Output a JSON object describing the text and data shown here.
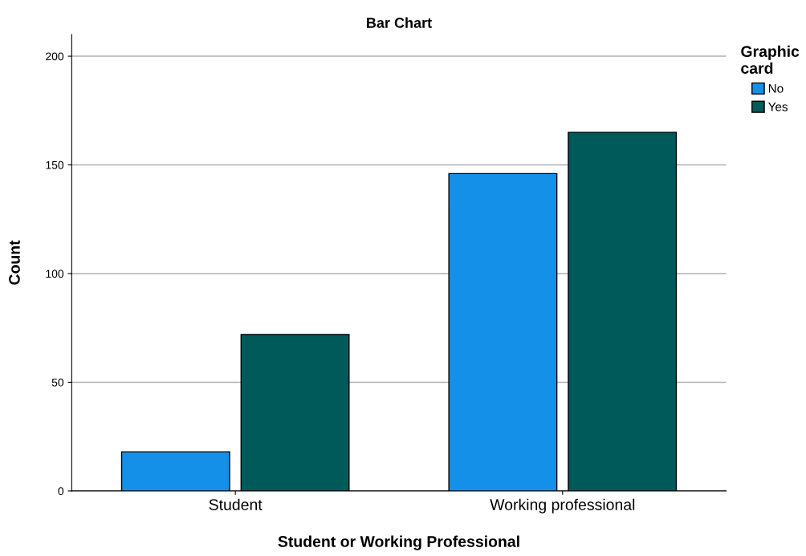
{
  "chart_data": {
    "type": "bar",
    "title": "Bar Chart",
    "xlabel": "Student or Working Professional",
    "ylabel": "Count",
    "legend_title": "Graphic\ncard",
    "categories": [
      "Student",
      "Working professional"
    ],
    "series": [
      {
        "name": "No",
        "color": "#1490e8",
        "values": [
          18,
          146
        ]
      },
      {
        "name": "Yes",
        "color": "#005a5a",
        "values": [
          72,
          165
        ]
      }
    ],
    "ylim": [
      0,
      210
    ],
    "yticks": [
      0,
      50,
      100,
      150,
      200
    ],
    "grid": "y",
    "legend": "top right"
  }
}
